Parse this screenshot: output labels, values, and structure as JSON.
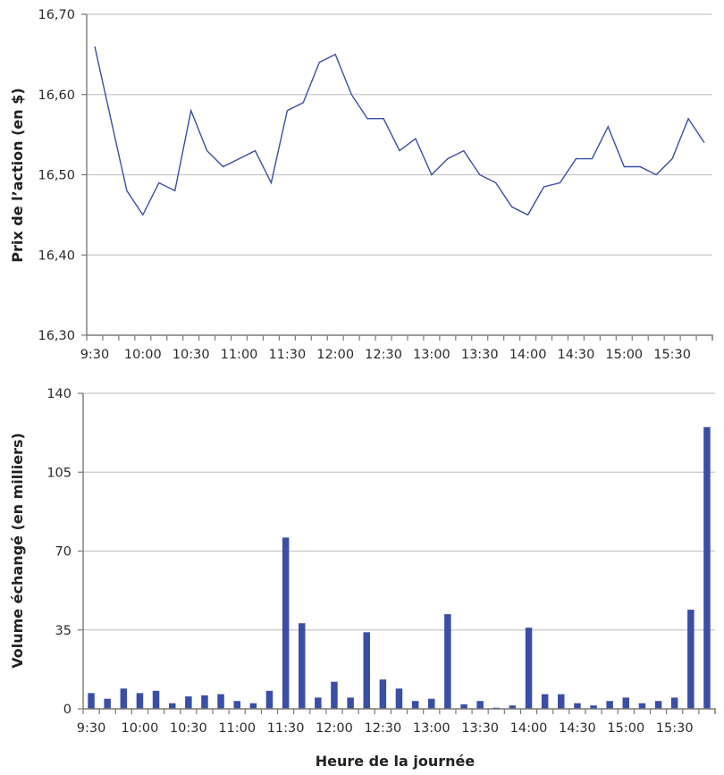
{
  "colors": {
    "series": "#3a4ea6",
    "grid": "#c8c8c8",
    "axis": "#7a7a7a"
  },
  "chart_data": [
    {
      "type": "line",
      "title": "",
      "xlabel": "",
      "ylabel": "Prix de l’action (en $)",
      "ylim": [
        16.3,
        16.7
      ],
      "yticks": [
        "16,30",
        "16,40",
        "16,50",
        "16,60",
        "16,70"
      ],
      "ytick_values": [
        16.3,
        16.4,
        16.5,
        16.6,
        16.7
      ],
      "xtick_labels": [
        "9:30",
        "10:00",
        "10:30",
        "11:00",
        "11:30",
        "12:00",
        "12:30",
        "13:00",
        "13:30",
        "14:00",
        "14:30",
        "15:00",
        "15:30"
      ],
      "grid": true,
      "x": [
        "9:30",
        "9:40",
        "9:50",
        "10:00",
        "10:10",
        "10:20",
        "10:30",
        "10:40",
        "10:50",
        "11:00",
        "11:10",
        "11:20",
        "11:30",
        "11:40",
        "11:50",
        "12:00",
        "12:10",
        "12:20",
        "12:30",
        "12:40",
        "12:50",
        "13:00",
        "13:10",
        "13:20",
        "13:30",
        "13:40",
        "13:50",
        "14:00",
        "14:10",
        "14:20",
        "14:30",
        "14:40",
        "14:50",
        "15:00",
        "15:10",
        "15:20",
        "15:30",
        "15:40",
        "15:50"
      ],
      "values": [
        16.66,
        16.57,
        16.48,
        16.45,
        16.49,
        16.48,
        16.58,
        16.53,
        16.51,
        16.52,
        16.53,
        16.49,
        16.58,
        16.59,
        16.64,
        16.65,
        16.6,
        16.57,
        16.57,
        16.53,
        16.545,
        16.5,
        16.52,
        16.53,
        16.5,
        16.49,
        16.46,
        16.45,
        16.485,
        16.49,
        16.52,
        16.52,
        16.56,
        16.51,
        16.51,
        16.5,
        16.52,
        16.57,
        16.54
      ]
    },
    {
      "type": "bar",
      "title": "",
      "xlabel": "Heure de la journée",
      "ylabel": "Volume échangé (en milliers)",
      "ylim": [
        0,
        140
      ],
      "yticks": [
        "0",
        "35",
        "70",
        "105",
        "140"
      ],
      "ytick_values": [
        0,
        35,
        70,
        105,
        140
      ],
      "xtick_labels": [
        "9:30",
        "10:00",
        "10:30",
        "11:00",
        "11:30",
        "12:00",
        "12:30",
        "13:00",
        "13:30",
        "14:00",
        "14:30",
        "15:00",
        "15:30"
      ],
      "grid": true,
      "categories": [
        "9:30",
        "9:40",
        "9:50",
        "10:00",
        "10:10",
        "10:20",
        "10:30",
        "10:40",
        "10:50",
        "11:00",
        "11:10",
        "11:20",
        "11:30",
        "11:40",
        "11:50",
        "12:00",
        "12:10",
        "12:20",
        "12:30",
        "12:40",
        "12:50",
        "13:00",
        "13:10",
        "13:20",
        "13:30",
        "13:40",
        "13:50",
        "14:00",
        "14:10",
        "14:20",
        "14:30",
        "14:40",
        "14:50",
        "15:00",
        "15:10",
        "15:20",
        "15:30",
        "15:40",
        "15:50"
      ],
      "values": [
        7,
        4.5,
        9,
        7,
        8,
        2.5,
        5.5,
        6,
        6.5,
        3.5,
        2.5,
        8,
        76,
        38,
        5,
        12,
        5,
        34,
        13,
        9,
        3.5,
        4.5,
        42,
        2,
        3.5,
        0.5,
        1.5,
        36,
        6.5,
        6.5,
        2.5,
        1.5,
        3.5,
        5,
        2.5,
        3.5,
        5,
        44,
        125
      ]
    }
  ]
}
